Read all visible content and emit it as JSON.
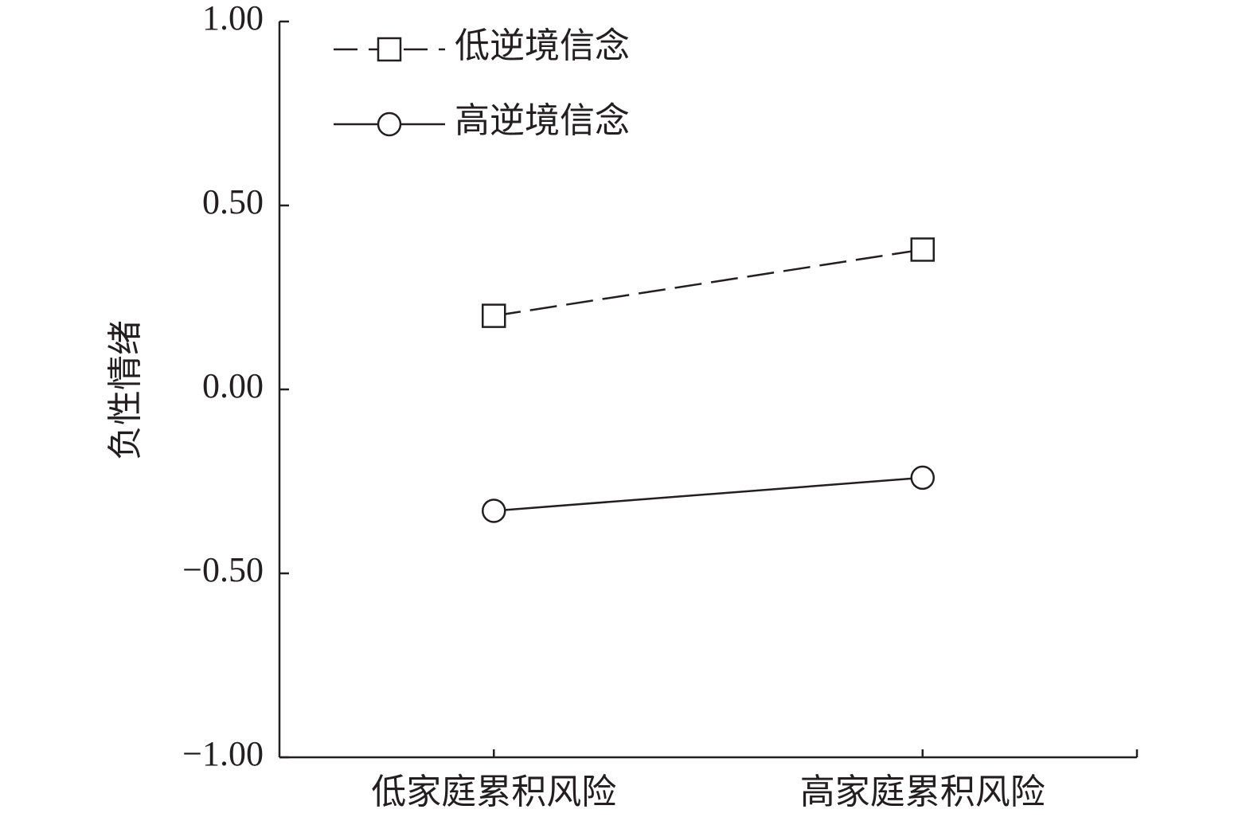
{
  "chart_data": {
    "type": "line",
    "y_label": "负性情绪",
    "categories": [
      "低家庭累积风险",
      "高家庭累积风险"
    ],
    "series": [
      {
        "name": "低逆境信念",
        "color": "#231f20",
        "line_style": "dashed",
        "marker": "square",
        "values": [
          0.2,
          0.38
        ]
      },
      {
        "name": "高逆境信念",
        "color": "#231f20",
        "line_style": "solid",
        "marker": "circle",
        "values": [
          -0.33,
          -0.24
        ]
      }
    ],
    "ylim": [
      -1,
      1
    ],
    "yticks": [
      {
        "value": -1,
        "label": "−1.00"
      },
      {
        "value": -0.5,
        "label": "−0.50"
      },
      {
        "value": 0,
        "label": "0.00"
      },
      {
        "value": 0.5,
        "label": "0.50"
      },
      {
        "value": 1,
        "label": "1.00"
      }
    ],
    "legend": "top-left"
  }
}
